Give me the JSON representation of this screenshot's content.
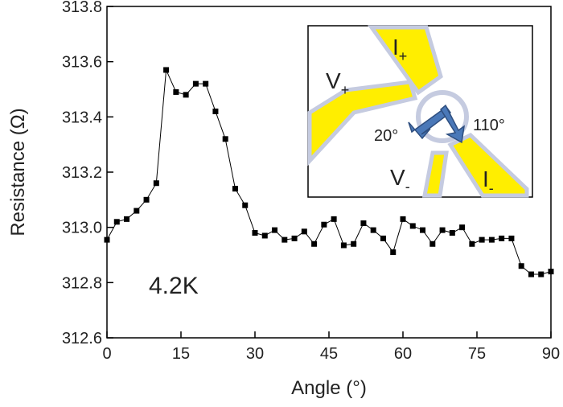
{
  "chart_data": {
    "type": "line",
    "x_label": "Angle (°)",
    "y_label": "Resistance (Ω)",
    "annotation": "4.2K",
    "x": [
      0,
      2,
      4,
      6,
      8,
      10,
      12,
      14,
      16,
      18,
      20,
      22,
      24,
      26,
      28,
      30,
      32,
      34,
      36,
      38,
      40,
      42,
      44,
      46,
      48,
      50,
      52,
      54,
      56,
      58,
      60,
      62,
      64,
      66,
      68,
      70,
      72,
      74,
      76,
      78,
      80,
      82,
      84,
      86,
      88,
      90
    ],
    "series": [
      {
        "color": "#000000",
        "values": [
          312.955,
          313.02,
          313.03,
          313.06,
          313.1,
          313.16,
          313.57,
          313.49,
          313.48,
          313.52,
          313.52,
          313.42,
          313.32,
          313.14,
          313.08,
          312.98,
          312.97,
          312.99,
          312.955,
          312.96,
          312.985,
          312.94,
          313.01,
          313.03,
          312.935,
          312.94,
          313.015,
          312.99,
          312.96,
          312.91,
          313.03,
          313.005,
          312.99,
          312.94,
          312.99,
          312.98,
          313.0,
          312.94,
          312.955,
          312.955,
          312.96,
          312.96,
          312.86,
          312.83,
          312.83,
          312.84
        ]
      }
    ],
    "xlim": [
      0,
      90
    ],
    "xticks": [
      0,
      15,
      30,
      45,
      60,
      75,
      90
    ],
    "ylim": [
      312.6,
      313.8
    ],
    "yticks": [
      312.6,
      312.8,
      {
        "value": 313,
        "label": "313.0"
      },
      313.2,
      313.4,
      313.6,
      313.8
    ],
    "inset": {
      "i_plus": {
        "text": "I",
        "sub": "+"
      },
      "v_plus": {
        "text": "V",
        "sub": "+"
      },
      "v_minus": {
        "text": "V",
        "sub": "-"
      },
      "i_minus": {
        "text": "I",
        "sub": "-"
      },
      "angle_a": "20°",
      "angle_b": "110°"
    }
  }
}
